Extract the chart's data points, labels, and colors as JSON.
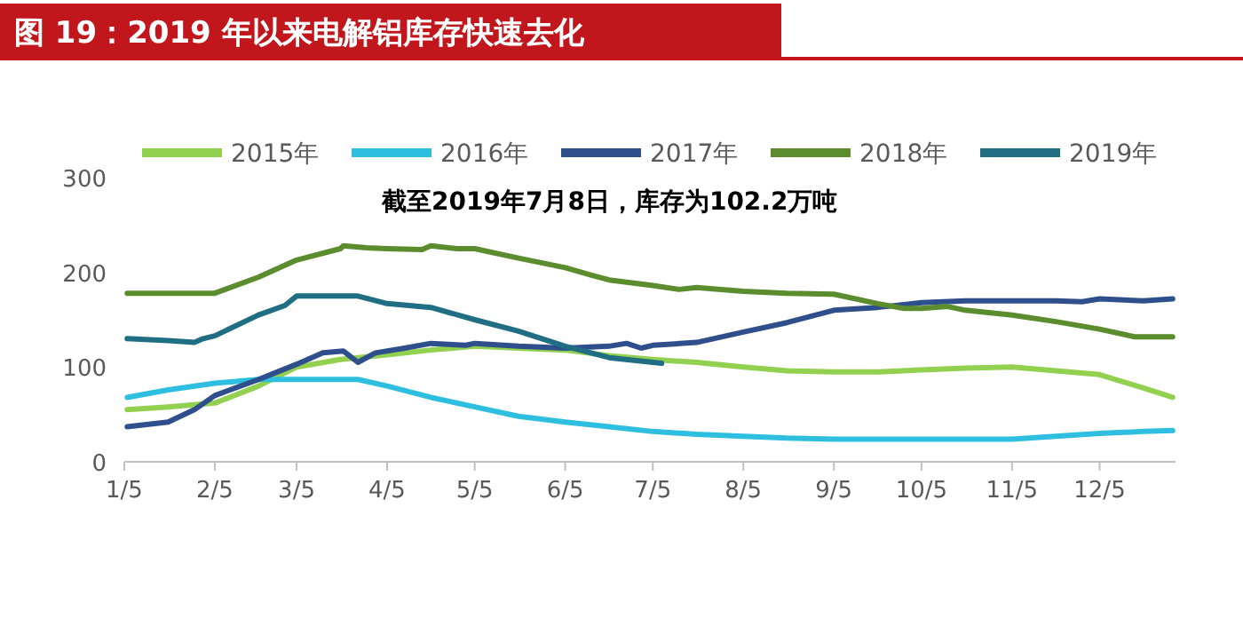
{
  "chart_data": {
    "type": "line",
    "title": "图 19：2019 年以来电解铝库存快速去化",
    "annotations": [
      "截至2019年7月8日，库存为102.2万吨"
    ],
    "xlim": [
      "--01-05",
      "--12-31"
    ],
    "xticks": [
      {
        "value": "--01-05",
        "label": "1/5"
      },
      {
        "value": "--02-05",
        "label": "2/5"
      },
      {
        "value": "--03-05",
        "label": "3/5"
      },
      {
        "value": "--04-05",
        "label": "4/5"
      },
      {
        "value": "--05-05",
        "label": "5/5"
      },
      {
        "value": "--06-05",
        "label": "6/5"
      },
      {
        "value": "--07-05",
        "label": "7/5"
      },
      {
        "value": "--08-05",
        "label": "8/5"
      },
      {
        "value": "--09-05",
        "label": "9/5"
      },
      {
        "value": "--10-05",
        "label": "10/5"
      },
      {
        "value": "--11-05",
        "label": "11/5"
      },
      {
        "value": "--12-05",
        "label": "12/5"
      }
    ],
    "ylim": [
      0,
      300
    ],
    "yticks": [
      0,
      100,
      200,
      300
    ],
    "legend": "top",
    "grid": false,
    "series": [
      {
        "name": "2015年",
        "color": "#92d050",
        "x": [
          "--01-06",
          "--01-20",
          "--02-05",
          "--02-20",
          "--03-05",
          "--03-20",
          "--04-05",
          "--04-20",
          "--05-05",
          "--05-20",
          "--06-05",
          "--06-20",
          "--07-05",
          "--07-20",
          "--08-05",
          "--08-20",
          "--09-05",
          "--09-20",
          "--10-05",
          "--10-20",
          "--11-05",
          "--11-20",
          "--12-05",
          "--12-20",
          "--12-30"
        ],
        "values": [
          55,
          58,
          62,
          80,
          100,
          108,
          113,
          118,
          122,
          120,
          118,
          112,
          108,
          105,
          100,
          96,
          95,
          95,
          97,
          99,
          100,
          96,
          92,
          78,
          68
        ]
      },
      {
        "name": "2016年",
        "color": "#2ebfe0",
        "x": [
          "--01-06",
          "--01-20",
          "--02-05",
          "--02-20",
          "--03-05",
          "--03-20",
          "--03-26",
          "--04-05",
          "--04-20",
          "--05-05",
          "--05-20",
          "--06-05",
          "--06-20",
          "--07-05",
          "--07-20",
          "--08-05",
          "--08-20",
          "--09-05",
          "--09-20",
          "--10-05",
          "--10-20",
          "--11-05",
          "--11-20",
          "--12-05",
          "--12-20",
          "--12-30"
        ],
        "values": [
          68,
          76,
          83,
          87,
          87,
          87,
          87,
          80,
          68,
          58,
          48,
          42,
          37,
          32,
          29,
          27,
          25,
          24,
          24,
          24,
          24,
          24,
          27,
          30,
          32,
          33
        ]
      },
      {
        "name": "2017年",
        "color": "#2e4f8c",
        "x": [
          "--01-06",
          "--01-20",
          "--01-29",
          "--02-05",
          "--02-20",
          "--03-05",
          "--03-14",
          "--03-21",
          "--03-26",
          "--04-01",
          "--04-11",
          "--04-20",
          "--05-02",
          "--05-05",
          "--05-20",
          "--06-05",
          "--06-20",
          "--06-26",
          "--07-01",
          "--07-05",
          "--07-20",
          "--08-05",
          "--08-20",
          "--09-05",
          "--09-20",
          "--10-05",
          "--10-20",
          "--11-05",
          "--11-20",
          "--11-29",
          "--12-05",
          "--12-20",
          "--12-30"
        ],
        "values": [
          37,
          42,
          55,
          70,
          87,
          103,
          115,
          117,
          105,
          115,
          120,
          125,
          123,
          125,
          122,
          120,
          122,
          125,
          120,
          123,
          126,
          137,
          147,
          160,
          163,
          168,
          170,
          170,
          170,
          169,
          172,
          170,
          172
        ]
      },
      {
        "name": "2018年",
        "color": "#5b8c2e",
        "x": [
          "--01-06",
          "--02-05",
          "--02-20",
          "--03-05",
          "--03-20",
          "--03-21",
          "--03-29",
          "--04-05",
          "--04-17",
          "--04-20",
          "--04-29",
          "--05-05",
          "--05-20",
          "--06-05",
          "--06-14",
          "--06-20",
          "--07-05",
          "--07-14",
          "--07-20",
          "--08-05",
          "--08-20",
          "--09-05",
          "--09-20",
          "--09-29",
          "--10-05",
          "--10-14",
          "--10-20",
          "--11-05",
          "--11-20",
          "--12-05",
          "--12-17",
          "--12-30"
        ],
        "values": [
          178,
          178,
          195,
          213,
          225,
          228,
          226,
          225,
          224,
          228,
          225,
          225,
          215,
          205,
          197,
          192,
          186,
          182,
          184,
          180,
          178,
          177,
          167,
          162,
          162,
          164,
          160,
          155,
          148,
          140,
          132,
          132
        ]
      },
      {
        "name": "2019年",
        "color": "#1f6e84",
        "x": [
          "--01-06",
          "--01-20",
          "--01-29",
          "--02-01",
          "--02-05",
          "--02-20",
          "--03-01",
          "--03-05",
          "--03-20",
          "--03-26",
          "--04-05",
          "--04-20",
          "--05-05",
          "--05-20",
          "--06-05",
          "--06-20",
          "--07-05",
          "--07-08"
        ],
        "values": [
          130,
          128,
          126,
          130,
          133,
          155,
          165,
          175,
          175,
          175,
          167,
          163,
          150,
          138,
          122,
          110,
          105,
          104
        ]
      }
    ]
  }
}
